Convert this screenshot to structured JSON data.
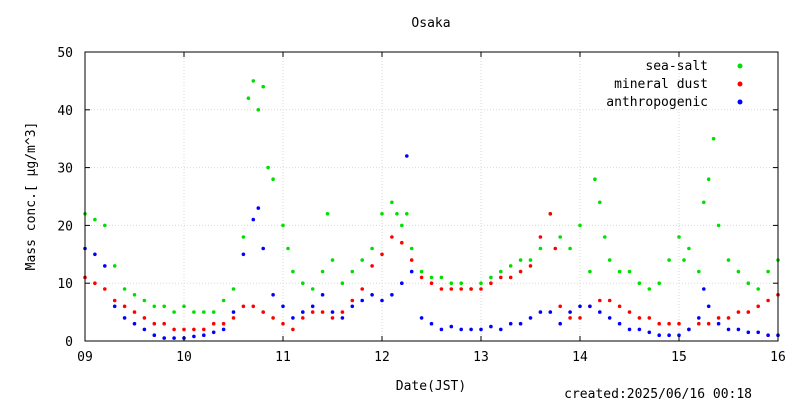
{
  "chart_data": {
    "type": "scatter",
    "title": "Osaka",
    "xlabel": "Date(JST)",
    "ylabel": "Mass conc.[ μg/m^3]",
    "xlim": [
      9,
      16
    ],
    "ylim": [
      0,
      50
    ],
    "x_ticks": [
      "09",
      "10",
      "11",
      "12",
      "13",
      "14",
      "15",
      "16"
    ],
    "y_ticks": [
      "0",
      "10",
      "20",
      "30",
      "40",
      "50"
    ],
    "grid": true,
    "legend_position": "top-right",
    "footer": "created:2025/06/16 00:18",
    "series": [
      {
        "name": "sea-salt",
        "color": "#00e000",
        "points": [
          [
            9.0,
            22
          ],
          [
            9.1,
            21
          ],
          [
            9.2,
            20
          ],
          [
            9.3,
            13
          ],
          [
            9.4,
            9
          ],
          [
            9.5,
            8
          ],
          [
            9.6,
            7
          ],
          [
            9.7,
            6
          ],
          [
            9.8,
            6
          ],
          [
            9.9,
            5
          ],
          [
            10.0,
            6
          ],
          [
            10.1,
            5
          ],
          [
            10.2,
            5
          ],
          [
            10.3,
            5
          ],
          [
            10.4,
            7
          ],
          [
            10.5,
            9
          ],
          [
            10.6,
            18
          ],
          [
            10.65,
            42
          ],
          [
            10.7,
            45
          ],
          [
            10.75,
            40
          ],
          [
            10.8,
            44
          ],
          [
            10.85,
            30
          ],
          [
            10.9,
            28
          ],
          [
            11.0,
            20
          ],
          [
            11.05,
            16
          ],
          [
            11.1,
            12
          ],
          [
            11.2,
            10
          ],
          [
            11.3,
            9
          ],
          [
            11.4,
            12
          ],
          [
            11.45,
            22
          ],
          [
            11.5,
            14
          ],
          [
            11.6,
            10
          ],
          [
            11.7,
            12
          ],
          [
            11.8,
            14
          ],
          [
            11.9,
            16
          ],
          [
            12.0,
            22
          ],
          [
            12.1,
            24
          ],
          [
            12.15,
            22
          ],
          [
            12.2,
            20
          ],
          [
            12.25,
            22
          ],
          [
            12.3,
            16
          ],
          [
            12.4,
            12
          ],
          [
            12.5,
            11
          ],
          [
            12.6,
            11
          ],
          [
            12.7,
            10
          ],
          [
            12.8,
            10
          ],
          [
            12.9,
            9
          ],
          [
            13.0,
            10
          ],
          [
            13.1,
            11
          ],
          [
            13.2,
            12
          ],
          [
            13.3,
            13
          ],
          [
            13.4,
            14
          ],
          [
            13.5,
            14
          ],
          [
            13.6,
            16
          ],
          [
            13.7,
            22
          ],
          [
            13.8,
            18
          ],
          [
            13.9,
            16
          ],
          [
            14.0,
            20
          ],
          [
            14.1,
            12
          ],
          [
            14.15,
            28
          ],
          [
            14.2,
            24
          ],
          [
            14.25,
            18
          ],
          [
            14.3,
            14
          ],
          [
            14.4,
            12
          ],
          [
            14.5,
            12
          ],
          [
            14.6,
            10
          ],
          [
            14.7,
            9
          ],
          [
            14.8,
            10
          ],
          [
            14.9,
            14
          ],
          [
            15.0,
            18
          ],
          [
            15.05,
            14
          ],
          [
            15.1,
            16
          ],
          [
            15.2,
            12
          ],
          [
            15.25,
            24
          ],
          [
            15.3,
            28
          ],
          [
            15.35,
            35
          ],
          [
            15.4,
            20
          ],
          [
            15.5,
            14
          ],
          [
            15.6,
            12
          ],
          [
            15.7,
            10
          ],
          [
            15.8,
            9
          ],
          [
            15.9,
            12
          ],
          [
            16.0,
            14
          ]
        ]
      },
      {
        "name": "mineral dust",
        "color": "#ff0000",
        "points": [
          [
            9.0,
            11
          ],
          [
            9.1,
            10
          ],
          [
            9.2,
            9
          ],
          [
            9.3,
            7
          ],
          [
            9.4,
            6
          ],
          [
            9.5,
            5
          ],
          [
            9.6,
            4
          ],
          [
            9.7,
            3
          ],
          [
            9.8,
            3
          ],
          [
            9.9,
            2
          ],
          [
            10.0,
            2
          ],
          [
            10.1,
            2
          ],
          [
            10.2,
            2
          ],
          [
            10.3,
            3
          ],
          [
            10.4,
            3
          ],
          [
            10.5,
            4
          ],
          [
            10.6,
            6
          ],
          [
            10.7,
            6
          ],
          [
            10.8,
            5
          ],
          [
            10.9,
            4
          ],
          [
            11.0,
            3
          ],
          [
            11.1,
            2
          ],
          [
            11.2,
            4
          ],
          [
            11.3,
            5
          ],
          [
            11.4,
            5
          ],
          [
            11.5,
            4
          ],
          [
            11.6,
            5
          ],
          [
            11.7,
            7
          ],
          [
            11.8,
            9
          ],
          [
            11.9,
            13
          ],
          [
            12.0,
            15
          ],
          [
            12.1,
            18
          ],
          [
            12.2,
            17
          ],
          [
            12.3,
            14
          ],
          [
            12.4,
            11
          ],
          [
            12.5,
            10
          ],
          [
            12.6,
            9
          ],
          [
            12.7,
            9
          ],
          [
            12.8,
            9
          ],
          [
            12.9,
            9
          ],
          [
            13.0,
            9
          ],
          [
            13.1,
            10
          ],
          [
            13.2,
            11
          ],
          [
            13.3,
            11
          ],
          [
            13.4,
            12
          ],
          [
            13.5,
            13
          ],
          [
            13.6,
            18
          ],
          [
            13.7,
            22
          ],
          [
            13.75,
            16
          ],
          [
            13.8,
            6
          ],
          [
            13.9,
            4
          ],
          [
            14.0,
            4
          ],
          [
            14.1,
            6
          ],
          [
            14.2,
            7
          ],
          [
            14.3,
            7
          ],
          [
            14.4,
            6
          ],
          [
            14.5,
            5
          ],
          [
            14.6,
            4
          ],
          [
            14.7,
            4
          ],
          [
            14.8,
            3
          ],
          [
            14.9,
            3
          ],
          [
            15.0,
            3
          ],
          [
            15.1,
            2
          ],
          [
            15.2,
            3
          ],
          [
            15.3,
            3
          ],
          [
            15.4,
            4
          ],
          [
            15.5,
            4
          ],
          [
            15.6,
            5
          ],
          [
            15.7,
            5
          ],
          [
            15.8,
            6
          ],
          [
            15.9,
            7
          ],
          [
            16.0,
            8
          ]
        ]
      },
      {
        "name": "anthropogenic",
        "color": "#0000ff",
        "points": [
          [
            9.0,
            16
          ],
          [
            9.1,
            15
          ],
          [
            9.2,
            13
          ],
          [
            9.3,
            6
          ],
          [
            9.4,
            4
          ],
          [
            9.5,
            3
          ],
          [
            9.6,
            2
          ],
          [
            9.7,
            1
          ],
          [
            9.8,
            0.5
          ],
          [
            9.9,
            0.5
          ],
          [
            10.0,
            0.5
          ],
          [
            10.1,
            0.8
          ],
          [
            10.2,
            1
          ],
          [
            10.3,
            1.5
          ],
          [
            10.4,
            2
          ],
          [
            10.5,
            5
          ],
          [
            10.6,
            15
          ],
          [
            10.7,
            21
          ],
          [
            10.75,
            23
          ],
          [
            10.8,
            16
          ],
          [
            10.9,
            8
          ],
          [
            11.0,
            6
          ],
          [
            11.1,
            4
          ],
          [
            11.2,
            5
          ],
          [
            11.3,
            6
          ],
          [
            11.4,
            8
          ],
          [
            11.5,
            5
          ],
          [
            11.6,
            4
          ],
          [
            11.7,
            6
          ],
          [
            11.8,
            7
          ],
          [
            11.9,
            8
          ],
          [
            12.0,
            7
          ],
          [
            12.1,
            8
          ],
          [
            12.2,
            10
          ],
          [
            12.25,
            32
          ],
          [
            12.3,
            12
          ],
          [
            12.4,
            4
          ],
          [
            12.5,
            3
          ],
          [
            12.6,
            2
          ],
          [
            12.7,
            2.5
          ],
          [
            12.8,
            2
          ],
          [
            12.9,
            2
          ],
          [
            13.0,
            2
          ],
          [
            13.1,
            2.5
          ],
          [
            13.2,
            2
          ],
          [
            13.3,
            3
          ],
          [
            13.4,
            3
          ],
          [
            13.5,
            4
          ],
          [
            13.6,
            5
          ],
          [
            13.7,
            5
          ],
          [
            13.8,
            3
          ],
          [
            13.9,
            5
          ],
          [
            14.0,
            6
          ],
          [
            14.1,
            6
          ],
          [
            14.2,
            5
          ],
          [
            14.3,
            4
          ],
          [
            14.4,
            3
          ],
          [
            14.5,
            2
          ],
          [
            14.6,
            2
          ],
          [
            14.7,
            1.5
          ],
          [
            14.8,
            1
          ],
          [
            14.9,
            1
          ],
          [
            15.0,
            1
          ],
          [
            15.1,
            2
          ],
          [
            15.2,
            4
          ],
          [
            15.25,
            9
          ],
          [
            15.3,
            6
          ],
          [
            15.4,
            3
          ],
          [
            15.5,
            2
          ],
          [
            15.6,
            2
          ],
          [
            15.7,
            1.5
          ],
          [
            15.8,
            1.5
          ],
          [
            15.9,
            1
          ],
          [
            16.0,
            1
          ]
        ]
      }
    ]
  }
}
